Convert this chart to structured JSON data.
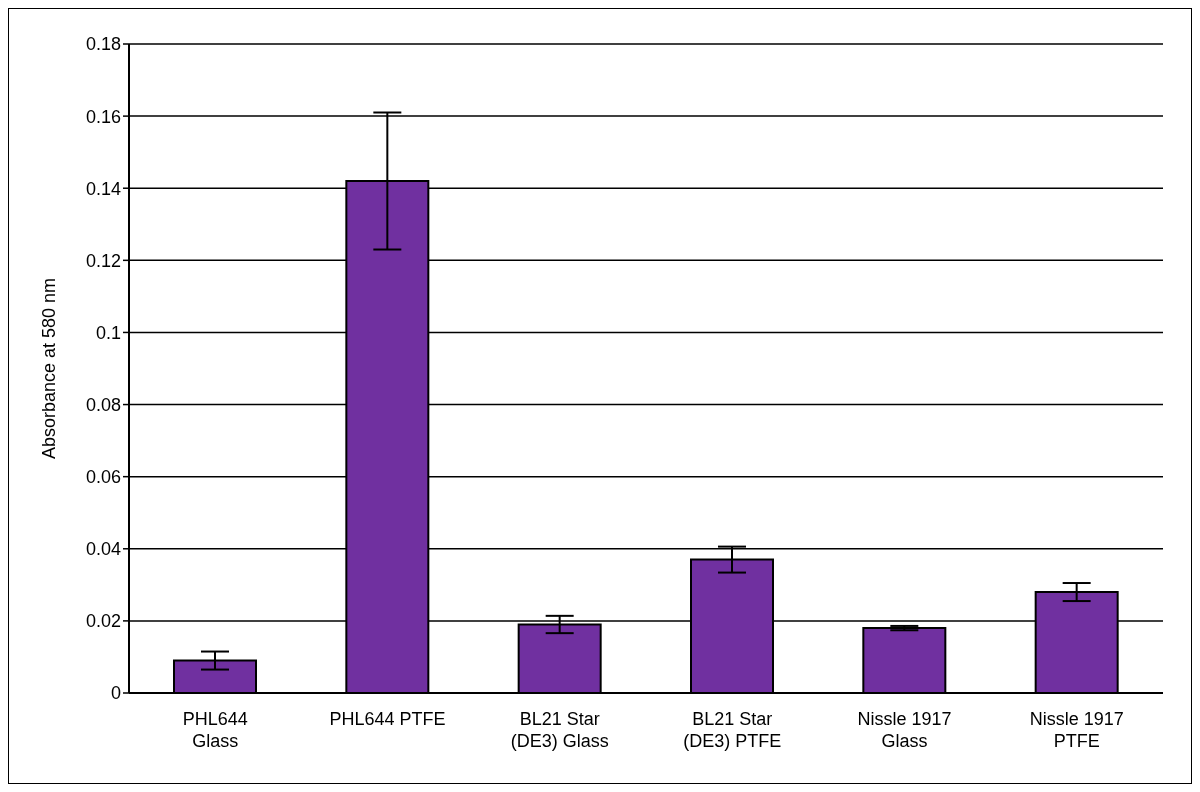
{
  "chart_data": {
    "type": "bar",
    "ylabel": "Absorbance at 580 nm",
    "categories": [
      "PHL644 Glass",
      "PHL644 PTFE",
      "BL21 Star (DE3) Glass",
      "BL21 Star (DE3) PTFE",
      "Nissle 1917 Glass",
      "Nissle 1917 PTFE"
    ],
    "values": [
      0.009,
      0.142,
      0.019,
      0.037,
      0.018,
      0.028
    ],
    "errors": [
      0.0025,
      0.019,
      0.0024,
      0.0036,
      0.0006,
      0.0025
    ],
    "color": "#7030a0",
    "ylim": [
      0,
      0.18
    ],
    "yticks": [
      0,
      0.02,
      0.04,
      0.06,
      0.08,
      0.1,
      0.12,
      0.14,
      0.16,
      0.18
    ],
    "grid": "y"
  }
}
